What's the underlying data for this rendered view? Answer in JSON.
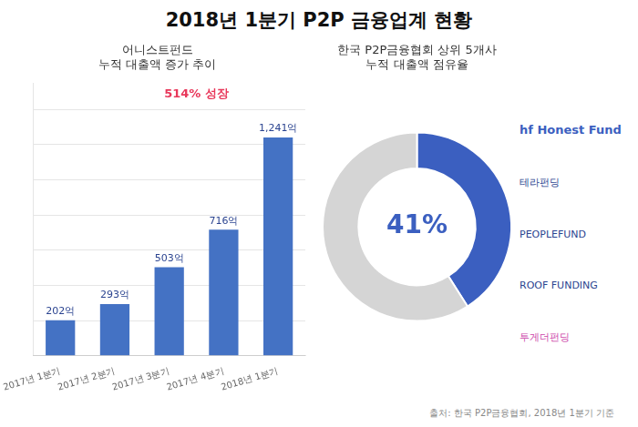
{
  "chart_data": [
    {
      "type": "bar",
      "title": "2018년 1분기 P2P 금융업계 현황",
      "subtitle": [
        "어니스트펀드",
        "누적 대출액 증가 추이"
      ],
      "categories": [
        "2017년 1분기",
        "2017년 2분기",
        "2017년 3분기",
        "2017년 4분기",
        "2018년 1분기"
      ],
      "values": [
        202,
        293,
        503,
        716,
        1241
      ],
      "value_labels": [
        "202억",
        "293억",
        "503억",
        "716억",
        "1,241억"
      ],
      "data_labels": true,
      "color": "#4472C4",
      "ylim": [
        0,
        1550
      ],
      "yticks": [
        0,
        200,
        400,
        600,
        800,
        1000,
        1200,
        1400
      ],
      "grid": true,
      "tick_labels": "x",
      "annotations": [
        {
          "text": "514% 성장",
          "color": "#E8375A"
        }
      ]
    },
    {
      "type": "doughnut",
      "subtitle": [
        "한국 P2P금융협회 상위 5개사",
        "누적 대출액 점유율"
      ],
      "values": [
        41,
        59
      ],
      "colors": [
        "#3B5FC0",
        "#D5D5D5"
      ],
      "annotations": [
        {
          "text": "41%",
          "color": "#3B5FC0"
        },
        {
          "text": "hf  Honest Fund",
          "color": "#3B5FC0"
        },
        {
          "text": "테라펀딩",
          "color": "#2B4490"
        },
        {
          "text": "PEOPLEFUND",
          "color": "#2B4490"
        },
        {
          "text": "ROOF FUNDING",
          "color": "#2B4490"
        },
        {
          "text": "투게더펀딩",
          "color": "#CC44AA"
        },
        {
          "text": "출처: 한국 P2P금융협회, 2018년 1분기 기준",
          "color": "#888888"
        }
      ]
    }
  ]
}
